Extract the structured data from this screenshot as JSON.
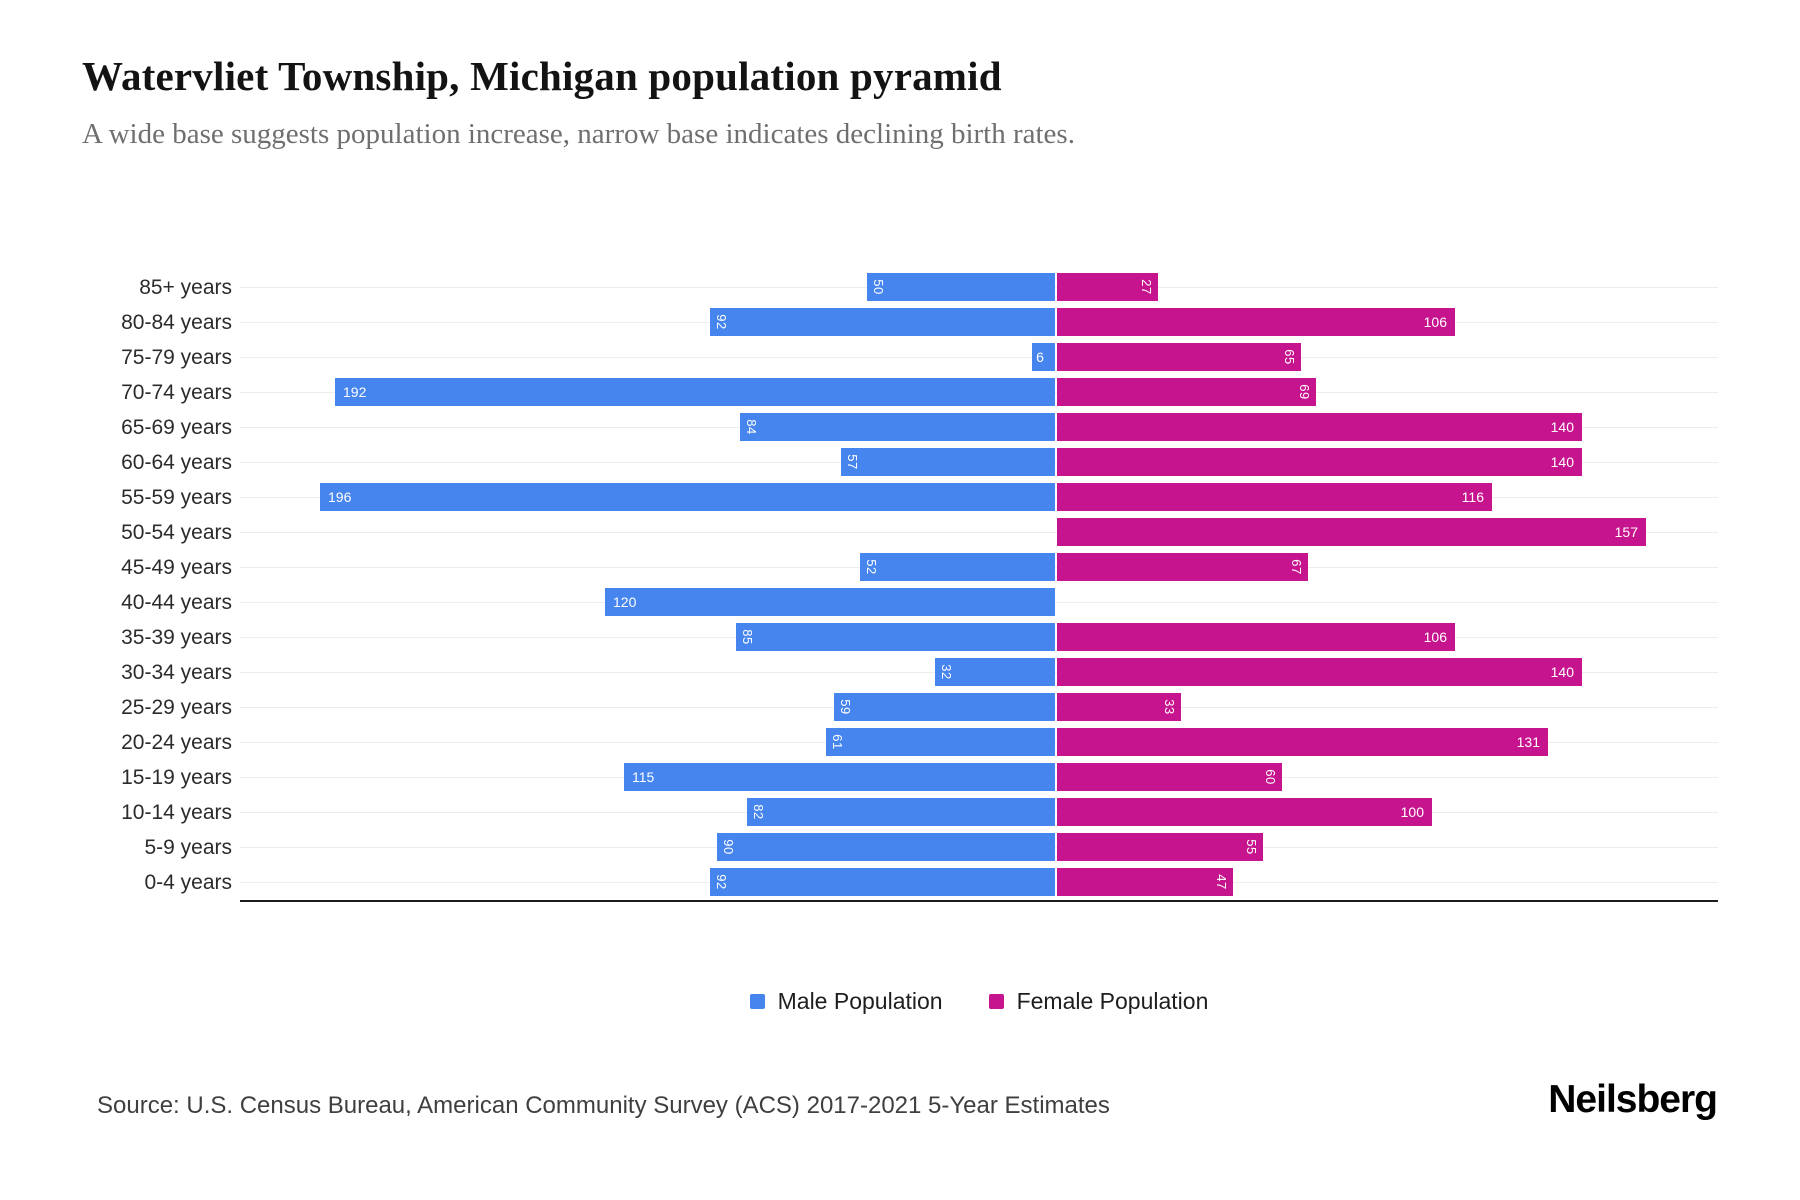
{
  "header": {
    "title": "Watervliet Township, Michigan population pyramid",
    "subtitle": "A wide base suggests population increase, narrow base indicates declining birth rates."
  },
  "chart_data": {
    "type": "bar",
    "variant": "population-pyramid",
    "orientation": "horizontal",
    "categories_order": "top-to-bottom",
    "categories": [
      "85+ years",
      "80-84 years",
      "75-79 years",
      "70-74 years",
      "65-69 years",
      "60-64 years",
      "55-59 years",
      "50-54 years",
      "45-49 years",
      "40-44 years",
      "35-39 years",
      "30-34 years",
      "25-29 years",
      "20-24 years",
      "15-19 years",
      "10-14 years",
      "5-9 years",
      "0-4 years"
    ],
    "series": [
      {
        "name": "Male Population",
        "side": "left",
        "color": "#4684EE",
        "values": [
          50,
          92,
          6,
          192,
          84,
          57,
          196,
          0,
          52,
          120,
          85,
          32,
          59,
          61,
          115,
          82,
          90,
          92
        ]
      },
      {
        "name": "Female Population",
        "side": "right",
        "color": "#C6148E",
        "values": [
          27,
          106,
          65,
          69,
          140,
          140,
          116,
          157,
          67,
          0,
          106,
          140,
          33,
          131,
          60,
          100,
          55,
          47
        ]
      }
    ],
    "value_labels": "inside far end, white; two-digit values rotated 90deg",
    "xlim_male": [
      0,
      218
    ],
    "xlim_female": [
      0,
      177
    ],
    "grid": "light horizontal line per category row",
    "legend_position": "bottom-center",
    "bar_label_color": "#ffffff",
    "gridline_color": "#ededed",
    "axis_line_color": "#1c1c1c"
  },
  "legend": {
    "items": [
      {
        "label": "Male Population",
        "color": "#4684EE"
      },
      {
        "label": "Female Population",
        "color": "#C6148E"
      }
    ]
  },
  "footer": {
    "source": "Source: U.S. Census Bureau, American Community Survey (ACS) 2017-2021 5-Year Estimates",
    "brand": "Neilsberg"
  }
}
